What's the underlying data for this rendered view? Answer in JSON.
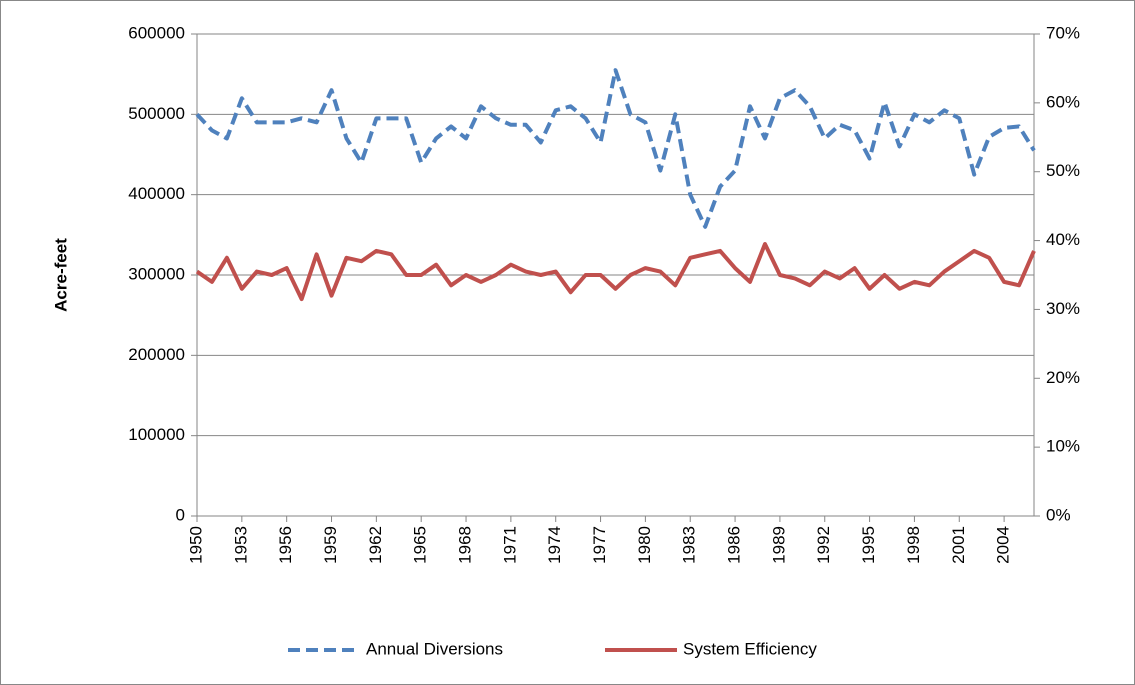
{
  "chart_data": {
    "type": "line",
    "y_label": "Acre-feet",
    "x": [
      1950,
      1951,
      1952,
      1953,
      1954,
      1955,
      1956,
      1957,
      1958,
      1959,
      1960,
      1961,
      1962,
      1963,
      1964,
      1965,
      1966,
      1967,
      1968,
      1969,
      1970,
      1971,
      1972,
      1973,
      1974,
      1975,
      1976,
      1977,
      1978,
      1979,
      1980,
      1981,
      1982,
      1983,
      1984,
      1985,
      1986,
      1987,
      1988,
      1989,
      1990,
      1991,
      1992,
      1993,
      1994,
      1995,
      1996,
      1997,
      1998,
      1999,
      2000,
      2001,
      2002,
      2003,
      2004,
      2005,
      2006
    ],
    "xlim": [
      1950,
      2006
    ],
    "xticks": [
      1950,
      1953,
      1956,
      1959,
      1962,
      1965,
      1968,
      1971,
      1974,
      1977,
      1980,
      1983,
      1986,
      1989,
      1992,
      1995,
      1998,
      2001,
      2004
    ],
    "ylim": [
      0,
      600000
    ],
    "yticks": [
      0,
      100000,
      200000,
      300000,
      400000,
      500000,
      600000
    ],
    "y2lim": [
      0,
      70
    ],
    "y2ticks": [
      {
        "value": 0,
        "label": "0%"
      },
      {
        "value": 10,
        "label": "10%"
      },
      {
        "value": 20,
        "label": "20%"
      },
      {
        "value": 30,
        "label": "30%"
      },
      {
        "value": 40,
        "label": "40%"
      },
      {
        "value": 50,
        "label": "50%"
      },
      {
        "value": 60,
        "label": "60%"
      },
      {
        "value": 70,
        "label": "70%"
      }
    ],
    "grid": true,
    "legend": "bottom",
    "series": [
      {
        "name": "Annual Diversions",
        "color": "#4f81bd",
        "dash": true,
        "values": [
          500000,
          480000,
          470000,
          520000,
          490000,
          490000,
          490000,
          495000,
          490000,
          530000,
          470000,
          440000,
          495000,
          495000,
          495000,
          440000,
          470000,
          485000,
          470000,
          510000,
          495000,
          487000,
          487000,
          465000,
          505000,
          510000,
          495000,
          465000,
          555000,
          500000,
          490000,
          430000,
          500000,
          400000,
          360000,
          410000,
          430000,
          510000,
          470000,
          520000,
          530000,
          510000,
          470000,
          487000,
          480000,
          445000,
          515000,
          460000,
          500000,
          490000,
          505000,
          495000,
          425000,
          472000,
          483000,
          485000,
          455000
        ]
      },
      {
        "name": "System Efficiency",
        "color": "#c0504d",
        "dash": false,
        "axis": "y2",
        "values": [
          35.5,
          34,
          37.5,
          33,
          35.5,
          35,
          36,
          31.5,
          38,
          32,
          37.5,
          37,
          38.5,
          38,
          35,
          35,
          36.5,
          33.5,
          35,
          34,
          35,
          36.5,
          35.5,
          35,
          35.5,
          32.5,
          35,
          35,
          33,
          35,
          36,
          35.5,
          33.5,
          37.5,
          38,
          38.5,
          36,
          34,
          39.5,
          35,
          34.5,
          33.5,
          35.5,
          34.5,
          36,
          33,
          35,
          33,
          34,
          33.5,
          35.5,
          37,
          38.5,
          37.5,
          34,
          33.5,
          38.5
        ]
      }
    ]
  }
}
